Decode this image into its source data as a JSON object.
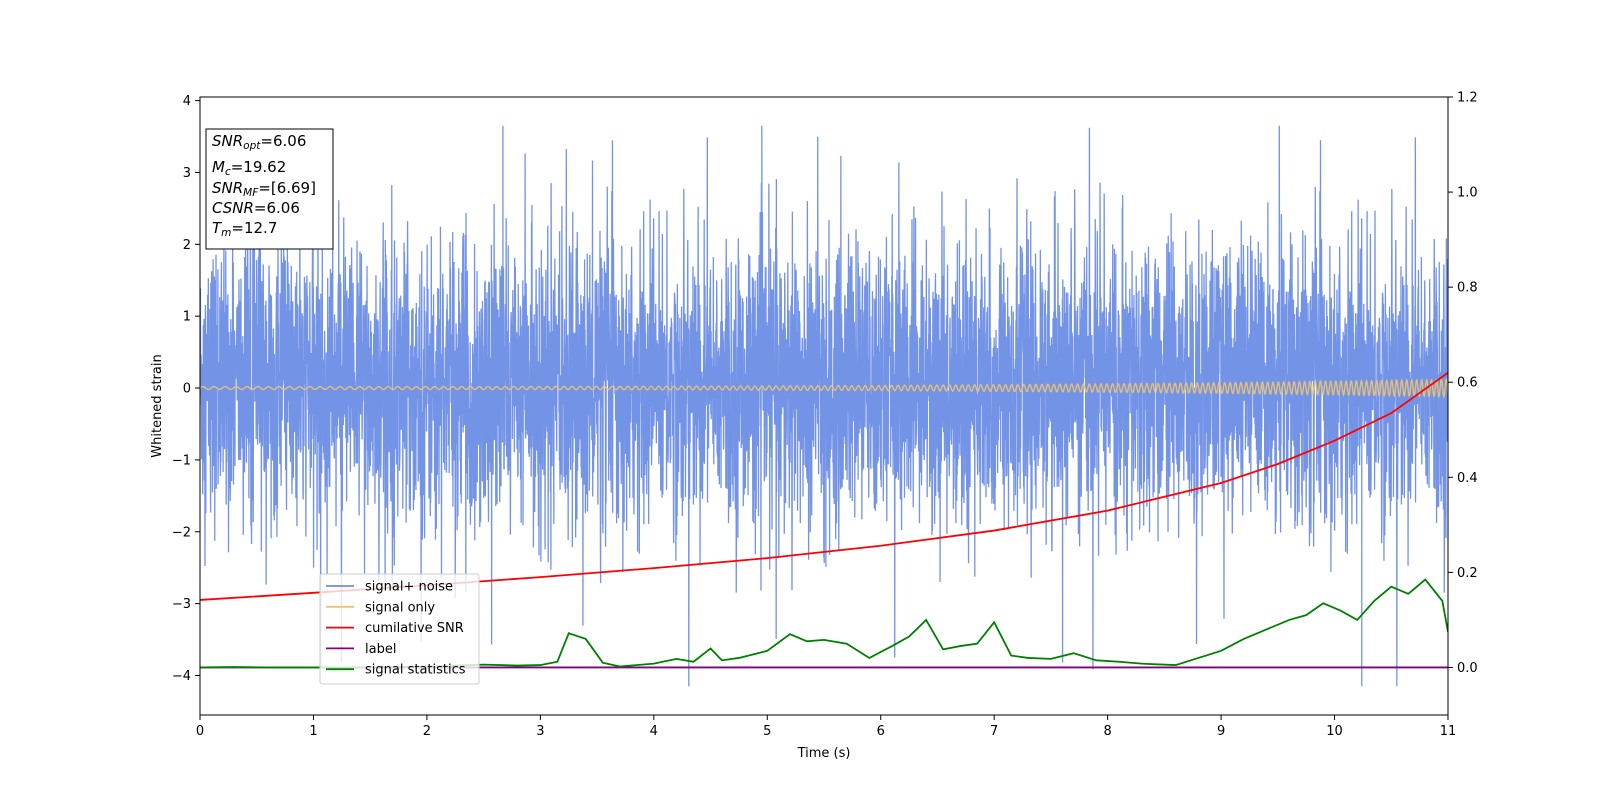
{
  "chart_data": {
    "type": "line",
    "title": "",
    "xlabel": "Time (s)",
    "ylabel": "Whitened strain",
    "xlim": [
      0,
      11
    ],
    "ylim": [
      -4.55,
      4.05
    ],
    "y2lim": [
      -0.1,
      1.2
    ],
    "x_ticks": [
      "0",
      "1",
      "2",
      "3",
      "4",
      "5",
      "6",
      "7",
      "8",
      "9",
      "10",
      "11"
    ],
    "y_ticks": [
      "−4",
      "−3",
      "−2",
      "−1",
      "0",
      "1",
      "2",
      "3",
      "4"
    ],
    "y2_ticks": [
      "0.0",
      "0.2",
      "0.4",
      "0.6",
      "0.8",
      "1.0",
      "1.2"
    ],
    "grid": false,
    "legend_position": "lower-left",
    "series": [
      {
        "name": "signal+ noise",
        "axis": "left",
        "color": "#6c8de6",
        "kind": "noise",
        "x_range": [
          0,
          11
        ],
        "typical_range": [
          -1.7,
          1.8
        ],
        "extremes": {
          "max": 3.65,
          "min": -4.15
        }
      },
      {
        "name": "signal only",
        "axis": "left",
        "color": "#f2c46b",
        "kind": "chirp",
        "x_range": [
          0,
          11
        ],
        "amplitude_start": 0.02,
        "amplitude_end": 0.12
      },
      {
        "name": "cumilative SNR",
        "axis": "right",
        "color": "#ff0000",
        "x": [
          0,
          1,
          2,
          3,
          4,
          5,
          6,
          7,
          8,
          9,
          9.5,
          10,
          10.5,
          11
        ],
        "y": [
          0.142,
          0.157,
          0.173,
          0.19,
          0.209,
          0.23,
          0.256,
          0.288,
          0.33,
          0.388,
          0.428,
          0.477,
          0.535,
          0.62
        ]
      },
      {
        "name": "label",
        "axis": "right",
        "color": "#800080",
        "x": [
          0,
          11
        ],
        "y": [
          0.0,
          0.0
        ]
      },
      {
        "name": "signal statistics",
        "axis": "right",
        "color": "#008000",
        "x": [
          0,
          0.3,
          0.6,
          1.0,
          1.5,
          2.0,
          2.5,
          2.8,
          3.0,
          3.15,
          3.25,
          3.4,
          3.55,
          3.7,
          4.0,
          4.2,
          4.35,
          4.5,
          4.6,
          4.75,
          5.0,
          5.2,
          5.35,
          5.5,
          5.7,
          5.9,
          6.1,
          6.25,
          6.4,
          6.55,
          6.7,
          6.85,
          7.0,
          7.15,
          7.3,
          7.5,
          7.7,
          7.9,
          8.1,
          8.3,
          8.6,
          8.8,
          9.0,
          9.2,
          9.4,
          9.6,
          9.75,
          9.9,
          10.05,
          10.2,
          10.35,
          10.5,
          10.65,
          10.8,
          10.95,
          11.0
        ],
        "y": [
          0.0,
          0.001,
          0.0,
          0.0,
          0.0,
          0.002,
          0.006,
          0.004,
          0.005,
          0.012,
          0.072,
          0.06,
          0.01,
          0.002,
          0.008,
          0.018,
          0.012,
          0.04,
          0.015,
          0.02,
          0.035,
          0.07,
          0.055,
          0.058,
          0.05,
          0.02,
          0.045,
          0.065,
          0.1,
          0.038,
          0.045,
          0.05,
          0.095,
          0.025,
          0.02,
          0.018,
          0.03,
          0.015,
          0.012,
          0.008,
          0.005,
          0.02,
          0.035,
          0.06,
          0.08,
          0.1,
          0.11,
          0.135,
          0.12,
          0.1,
          0.14,
          0.17,
          0.155,
          0.185,
          0.14,
          0.075
        ]
      }
    ],
    "info_box": {
      "lines": [
        {
          "main": "SNR",
          "sub": "opt",
          "rest": "=6.06"
        },
        {
          "main": "M",
          "sub": "c",
          "rest": "=19.62"
        },
        {
          "main": "SNR",
          "sub": "MF",
          "rest": "=[6.69]"
        },
        {
          "main": "CSNR",
          "sub": "",
          "rest": "=6.06"
        },
        {
          "main": "T",
          "sub": "m",
          "rest": "=12.7"
        }
      ]
    },
    "legend": [
      {
        "label": "signal+ noise",
        "color": "#6c8de6"
      },
      {
        "label": "signal only",
        "color": "#f2c46b"
      },
      {
        "label": "cumilative SNR",
        "color": "#ff0000"
      },
      {
        "label": "label",
        "color": "#800080"
      },
      {
        "label": "signal statistics",
        "color": "#008000"
      }
    ]
  }
}
